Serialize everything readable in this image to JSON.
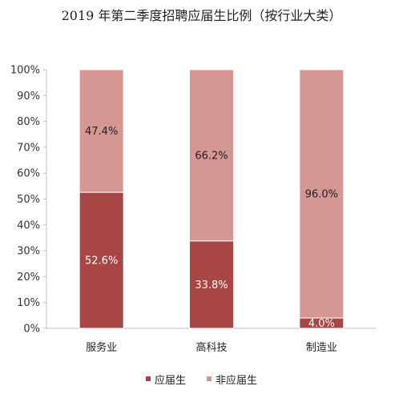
{
  "title": "2019 年第二季度招聘应届生比例（按行业大类）",
  "chart_data": {
    "type": "bar",
    "stacked": true,
    "title": "2019 年第二季度招聘应届生比例（按行业大类）",
    "categories": [
      "服务业",
      "高科技",
      "制造业"
    ],
    "series": [
      {
        "name": "应届生",
        "values": [
          52.6,
          33.8,
          4.0
        ],
        "labels": [
          "52.6%",
          "33.8%",
          "4.0%"
        ],
        "color": "#a84545"
      },
      {
        "name": "非应届生",
        "values": [
          47.4,
          66.2,
          96.0
        ],
        "labels": [
          "47.4%",
          "66.2%",
          "96.0%"
        ],
        "color": "#d49794"
      }
    ],
    "ylim": [
      0,
      100
    ],
    "yticks": [
      "0%",
      "10%",
      "20%",
      "30%",
      "40%",
      "50%",
      "60%",
      "70%",
      "80%",
      "90%",
      "100%"
    ],
    "grid": false,
    "legend": "bottom"
  }
}
